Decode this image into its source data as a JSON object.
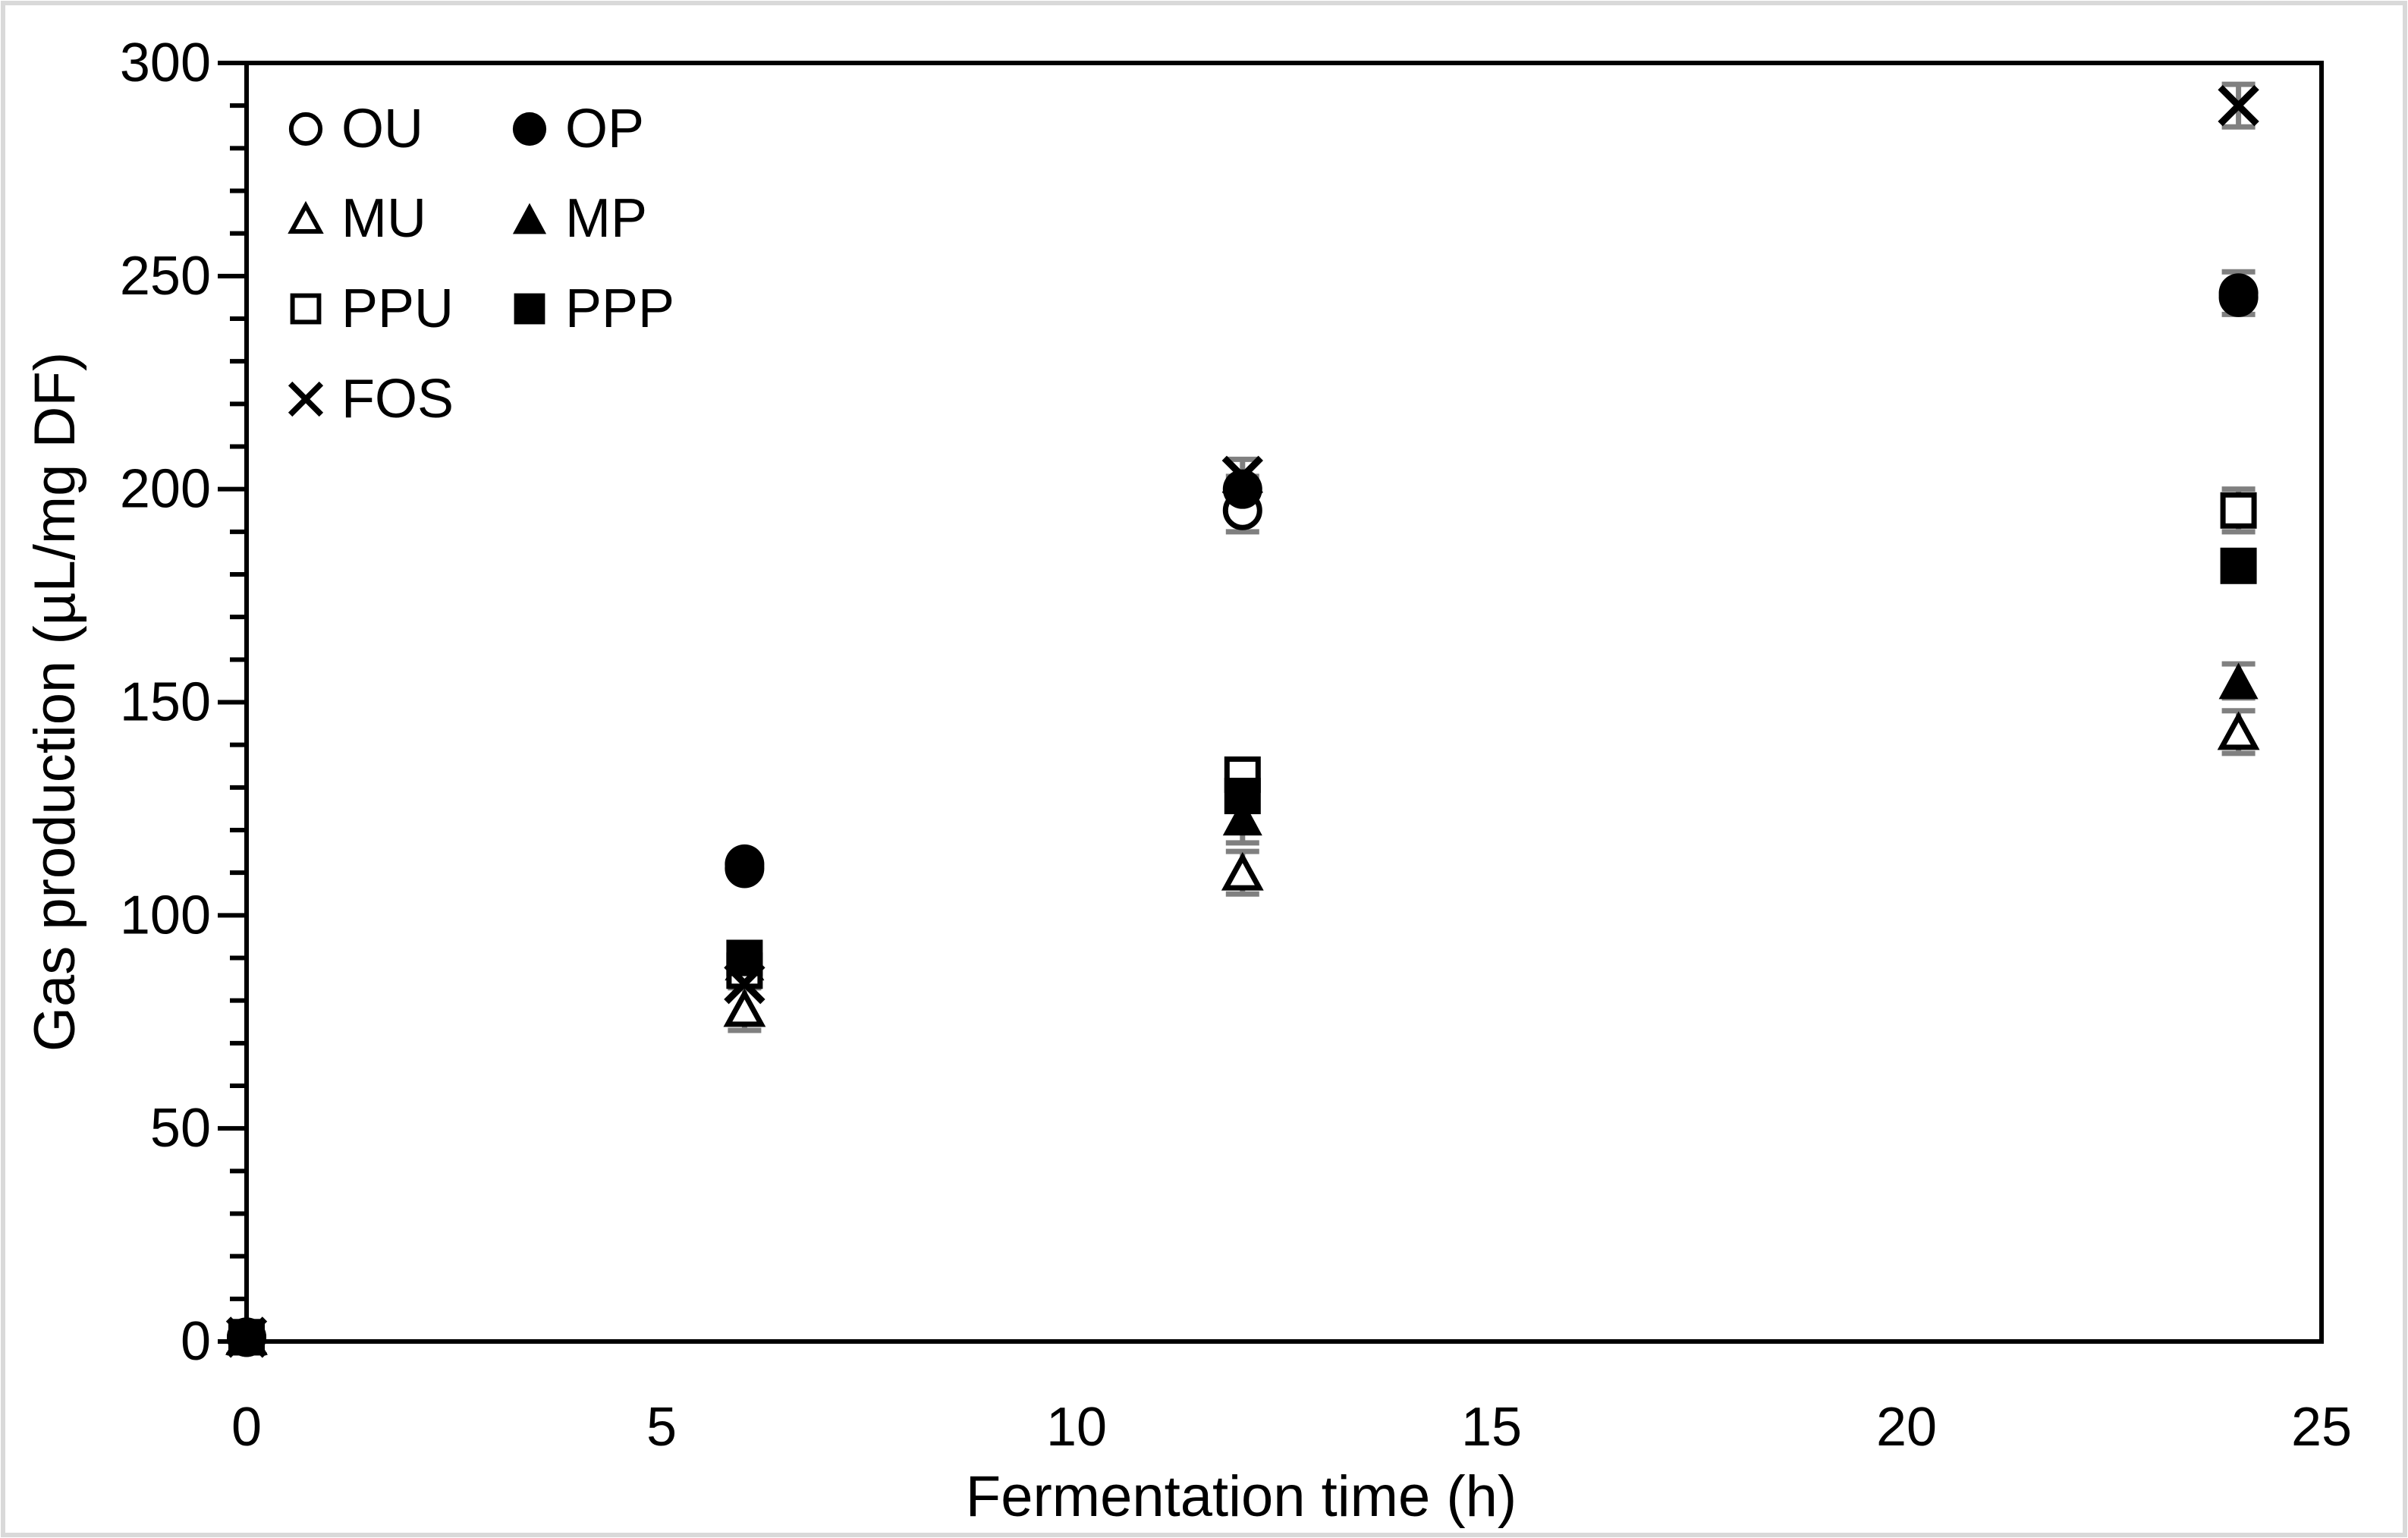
{
  "figure": {
    "background": "#ffffff",
    "outer_border_color": "#d9d9d9",
    "axis_color": "#000000"
  },
  "chart_data": {
    "type": "scatter",
    "title": "",
    "xlabel": "Fermentation time (h)",
    "ylabel": "Gas production (µL/mg DF)",
    "xlim": [
      0,
      25
    ],
    "ylim": [
      0,
      300
    ],
    "x_ticks": [
      0,
      5,
      10,
      15,
      20,
      25
    ],
    "y_ticks": [
      0,
      50,
      100,
      150,
      200,
      250,
      300
    ],
    "y_minor_tick_step": 10,
    "grid": false,
    "legend_position": "top-left, two columns",
    "x": [
      0,
      6,
      12,
      24
    ],
    "series": [
      {
        "name": "OU",
        "marker": "circle-open",
        "values": [
          1,
          111,
          195,
          245
        ],
        "errors": [
          0,
          0,
          5,
          0
        ]
      },
      {
        "name": "OP",
        "marker": "circle-filled",
        "values": [
          1,
          112,
          200,
          246
        ],
        "errors": [
          0,
          0,
          3,
          5
        ]
      },
      {
        "name": "MU",
        "marker": "triangle-open",
        "values": [
          1,
          78,
          110,
          143
        ],
        "errors": [
          0,
          5,
          5,
          5
        ]
      },
      {
        "name": "MP",
        "marker": "triangle-filled",
        "values": [
          1,
          89,
          123,
          155
        ],
        "errors": [
          0,
          0,
          6,
          4
        ]
      },
      {
        "name": "PPU",
        "marker": "square-open",
        "values": [
          1,
          87,
          133,
          195
        ],
        "errors": [
          0,
          0,
          3,
          5
        ]
      },
      {
        "name": "PPP",
        "marker": "square-filled",
        "values": [
          1,
          90,
          128,
          182
        ],
        "errors": [
          0,
          0,
          3,
          3
        ]
      },
      {
        "name": "FOS",
        "marker": "x",
        "values": [
          1,
          84,
          203,
          290
        ],
        "errors": [
          0,
          0,
          4,
          5
        ]
      }
    ],
    "colors": {
      "marker": "#000000",
      "error_bar": "#808080"
    }
  }
}
